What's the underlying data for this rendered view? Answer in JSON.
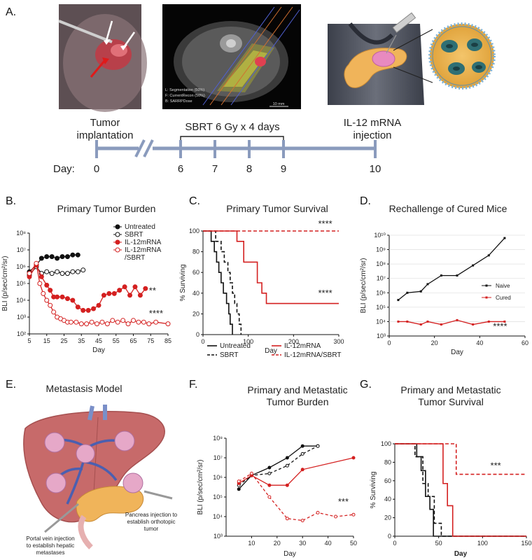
{
  "panels": {
    "A": {
      "letter": "A.",
      "ct_overlay": [
        "L: Segmentation (50%)",
        "F: CurrentRecon (50%)",
        "B: SARRPDose"
      ],
      "scale_bar": "10 mm",
      "tumor_implantation": [
        "Tumor",
        "implantation"
      ],
      "sbrt_label": "SBRT 6 Gy x 4 days",
      "injection_label": [
        "IL-12 mRNA",
        "injection"
      ],
      "day_label": "Day:",
      "days": [
        "0",
        "6",
        "7",
        "8",
        "9",
        "10"
      ]
    },
    "B": {
      "letter": "B.",
      "title": "Primary Tumor Burden"
    },
    "C": {
      "letter": "C.",
      "title": "Primary Tumor Survival"
    },
    "D": {
      "letter": "D.",
      "title": "Rechallenge of Cured Mice"
    },
    "E": {
      "letter": "E.",
      "title": "Metastasis Model",
      "portal_label": [
        "Portal vein injection",
        "to establish hepatic",
        "metastases"
      ],
      "pancreas_label": [
        "Pancreas injection to",
        "establish orthotopic",
        "tumor"
      ]
    },
    "F": {
      "letter": "F.",
      "title": [
        "Primary and Metastatic",
        "Tumor Burden"
      ]
    },
    "G": {
      "letter": "G.",
      "title": [
        "Primary and Metastatic",
        "Tumor Survival"
      ]
    }
  },
  "colors": {
    "black": "#111111",
    "red": "#d42020",
    "timeline": "#8a9bbd"
  },
  "chart_data": [
    {
      "id": "B",
      "type": "line",
      "title": "Primary Tumor Burden",
      "xlabel": "Day",
      "ylabel": "BLI (p/sec/cm²/sr)",
      "yscale": "log",
      "xlim": [
        5,
        85
      ],
      "ylim_exp": [
        2,
        8
      ],
      "xticks": [
        "5",
        "15",
        "25",
        "35",
        "45",
        "55",
        "65",
        "75",
        "85"
      ],
      "yticks": [
        "10²",
        "10³",
        "10⁴",
        "10⁵",
        "10⁶",
        "10⁷",
        "10⁸"
      ],
      "series": [
        {
          "name": "Untreated",
          "color": "#111111",
          "marker": "filled",
          "x": [
            5,
            9,
            12,
            15,
            18,
            21,
            24,
            27,
            30,
            33
          ],
          "exp": [
            5.7,
            6.1,
            6.5,
            6.6,
            6.6,
            6.5,
            6.6,
            6.6,
            6.7,
            6.7
          ]
        },
        {
          "name": "SBRT",
          "color": "#111111",
          "marker": "open",
          "x": [
            5,
            9,
            12,
            15,
            18,
            21,
            24,
            27,
            30,
            33,
            36
          ],
          "exp": [
            5.5,
            6.0,
            5.6,
            5.7,
            5.6,
            5.7,
            5.6,
            5.6,
            5.7,
            5.7,
            5.8
          ]
        },
        {
          "name": "IL-12mRNA",
          "color": "#d42020",
          "marker": "filled",
          "x": [
            5,
            9,
            12,
            15,
            17,
            19,
            21,
            24,
            27,
            30,
            33,
            36,
            39,
            42,
            45,
            48,
            51,
            54,
            57,
            60,
            63,
            66,
            69,
            72
          ],
          "exp": [
            5.4,
            6.1,
            5.4,
            4.9,
            4.6,
            4.2,
            4.2,
            4.2,
            4.1,
            4.0,
            3.6,
            3.4,
            3.4,
            3.5,
            3.7,
            4.3,
            4.4,
            4.4,
            4.6,
            4.8,
            4.3,
            4.8,
            4.3,
            4.7
          ]
        },
        {
          "name": "IL-12mRNA /SBRT",
          "color": "#d42020",
          "marker": "open",
          "x": [
            5,
            9,
            11,
            13,
            15,
            17,
            19,
            21,
            23,
            25,
            27,
            29,
            32,
            35,
            38,
            41,
            44,
            47,
            50,
            53,
            56,
            59,
            62,
            65,
            68,
            71,
            74,
            78,
            85
          ],
          "exp": [
            5.6,
            6.2,
            5.0,
            4.4,
            4.0,
            3.7,
            3.3,
            3.0,
            2.9,
            2.8,
            2.7,
            2.7,
            2.7,
            2.6,
            2.6,
            2.7,
            2.6,
            2.7,
            2.6,
            2.8,
            2.7,
            2.8,
            2.6,
            2.8,
            2.7,
            2.7,
            2.6,
            2.7,
            2.6
          ]
        }
      ],
      "annotations": [
        {
          "text": "**",
          "x": 74,
          "exp": 4.4
        },
        {
          "text": "****",
          "x": 74,
          "exp": 3.05
        }
      ],
      "legend": [
        "Untreated",
        "SBRT",
        "IL-12mRNA",
        "IL-12mRNA",
        "/SBRT"
      ]
    },
    {
      "id": "C",
      "type": "step",
      "title": "Primary Tumor Survival",
      "xlabel": "Day",
      "ylabel": "% Surviving",
      "xlim": [
        0,
        300
      ],
      "ylim": [
        0,
        100
      ],
      "xticks": [
        "0",
        "100",
        "200",
        "300"
      ],
      "yticks": [
        "0",
        "20",
        "40",
        "60",
        "80",
        "100"
      ],
      "series": [
        {
          "name": "Untreated",
          "color": "#111111",
          "dash": "solid",
          "x": [
            0,
            18,
            25,
            30,
            35,
            40,
            45,
            52,
            57,
            60,
            65
          ],
          "y": [
            100,
            90,
            80,
            70,
            60,
            50,
            40,
            30,
            20,
            10,
            0
          ]
        },
        {
          "name": "SBRT",
          "color": "#111111",
          "dash": "dash",
          "x": [
            0,
            28,
            40,
            47,
            55,
            60,
            65,
            70,
            75,
            80,
            84
          ],
          "y": [
            100,
            90,
            80,
            70,
            60,
            50,
            40,
            30,
            20,
            10,
            0
          ]
        },
        {
          "name": "IL-12mRNA",
          "color": "#d42020",
          "dash": "solid",
          "x": [
            0,
            75,
            90,
            120,
            130,
            140,
            300
          ],
          "y": [
            100,
            90,
            70,
            50,
            40,
            30,
            30
          ]
        },
        {
          "name": "IL-12mRNA/SBRT",
          "color": "#d42020",
          "dash": "dash",
          "x": [
            0,
            300
          ],
          "y": [
            100,
            100
          ]
        }
      ],
      "annotations": [
        {
          "text": "****",
          "x": 270,
          "y": 104
        },
        {
          "text": "****",
          "x": 270,
          "y": 37
        }
      ],
      "legend": [
        "Untreated",
        "SBRT",
        "IL-12mRNA",
        "IL-12mRNA/SBRT"
      ]
    },
    {
      "id": "D",
      "type": "line",
      "title": "Rechallenge of Cured Mice",
      "xlabel": "Day",
      "ylabel": "BLI (p/sec/cm²/sr)",
      "yscale": "log",
      "xlim": [
        0,
        60
      ],
      "ylim_exp": [
        3,
        10
      ],
      "xticks": [
        "0",
        "20",
        "40",
        "60"
      ],
      "yticks": [
        "10³",
        "10⁴",
        "10⁵",
        "10⁶",
        "10⁷",
        "10⁸",
        "10⁹",
        "10¹⁰"
      ],
      "series": [
        {
          "name": "Naive",
          "color": "#111111",
          "x": [
            4,
            8,
            14,
            17,
            23,
            30,
            37,
            44,
            51
          ],
          "exp": [
            5.5,
            6.0,
            6.1,
            6.6,
            7.2,
            7.2,
            7.9,
            8.6,
            9.8
          ]
        },
        {
          "name": "Cured",
          "color": "#d42020",
          "x": [
            4,
            8,
            14,
            17,
            23,
            30,
            37,
            44,
            51
          ],
          "exp": [
            4.0,
            4.0,
            3.8,
            4.0,
            3.8,
            4.1,
            3.8,
            4.0,
            4.0
          ]
        }
      ],
      "annotations": [
        {
          "text": "****",
          "x": 49,
          "exp": 3.45
        }
      ],
      "legend": [
        "Naive",
        "Cured"
      ]
    },
    {
      "id": "F",
      "type": "line",
      "title": "Primary and Metastatic Tumor Burden",
      "xlabel": "Day",
      "ylabel": "BLI (p/sec/cm²/sr)",
      "yscale": "log",
      "xlim": [
        0,
        50
      ],
      "ylim_exp": [
        3,
        8
      ],
      "xticks": [
        "10",
        "20",
        "30",
        "40",
        "50"
      ],
      "yticks": [
        "10³",
        "10⁴",
        "10⁵",
        "10⁶",
        "10⁷",
        "10⁸"
      ],
      "series": [
        {
          "name": "black solid",
          "color": "#111111",
          "dash": "solid",
          "x": [
            5,
            10,
            17,
            24,
            30,
            36
          ],
          "exp": [
            5.4,
            6.1,
            6.5,
            7.0,
            7.6,
            7.6
          ]
        },
        {
          "name": "black dashed",
          "color": "#111111",
          "dash": "dash",
          "x": [
            5,
            10,
            17,
            24,
            30,
            36
          ],
          "exp": [
            5.6,
            6.1,
            6.2,
            6.6,
            7.2,
            7.6
          ]
        },
        {
          "name": "red solid",
          "color": "#d42020",
          "dash": "solid",
          "x": [
            5,
            10,
            17,
            24,
            30,
            50
          ],
          "exp": [
            5.7,
            6.1,
            5.6,
            5.6,
            6.4,
            7.0
          ]
        },
        {
          "name": "red dashed",
          "color": "#d42020",
          "dash": "dash",
          "x": [
            5,
            10,
            17,
            24,
            30,
            36,
            43,
            50
          ],
          "exp": [
            5.8,
            6.2,
            5.0,
            3.9,
            3.8,
            4.2,
            4.0,
            4.1
          ]
        }
      ],
      "annotations": [
        {
          "text": "***",
          "x": 46,
          "exp": 4.6
        }
      ]
    },
    {
      "id": "G",
      "type": "step",
      "title": "Primary and Metastatic Tumor Survival",
      "xlabel": "Day",
      "ylabel": "% Surviving",
      "xlim": [
        0,
        150
      ],
      "ylim": [
        0,
        100
      ],
      "xticks": [
        "0",
        "50",
        "100",
        "150"
      ],
      "yticks": [
        "0",
        "20",
        "40",
        "60",
        "80",
        "100"
      ],
      "series": [
        {
          "name": "black solid",
          "color": "#111111",
          "dash": "solid",
          "x": [
            0,
            25,
            30,
            35,
            40,
            44,
            150
          ],
          "y": [
            100,
            86,
            71,
            43,
            29,
            0,
            0
          ]
        },
        {
          "name": "black dashed",
          "color": "#111111",
          "dash": "dash",
          "x": [
            0,
            23,
            32,
            38,
            45,
            53,
            150
          ],
          "y": [
            100,
            86,
            57,
            43,
            14,
            0,
            0
          ]
        },
        {
          "name": "red solid",
          "color": "#d42020",
          "dash": "solid",
          "x": [
            0,
            55,
            60,
            66,
            150
          ],
          "y": [
            100,
            57,
            33,
            0,
            0
          ]
        },
        {
          "name": "red dashed",
          "color": "#d42020",
          "dash": "dash",
          "x": [
            0,
            70,
            150
          ],
          "y": [
            100,
            67,
            67
          ]
        }
      ],
      "annotations": [
        {
          "text": "***",
          "x": 115,
          "y": 73
        }
      ]
    }
  ]
}
